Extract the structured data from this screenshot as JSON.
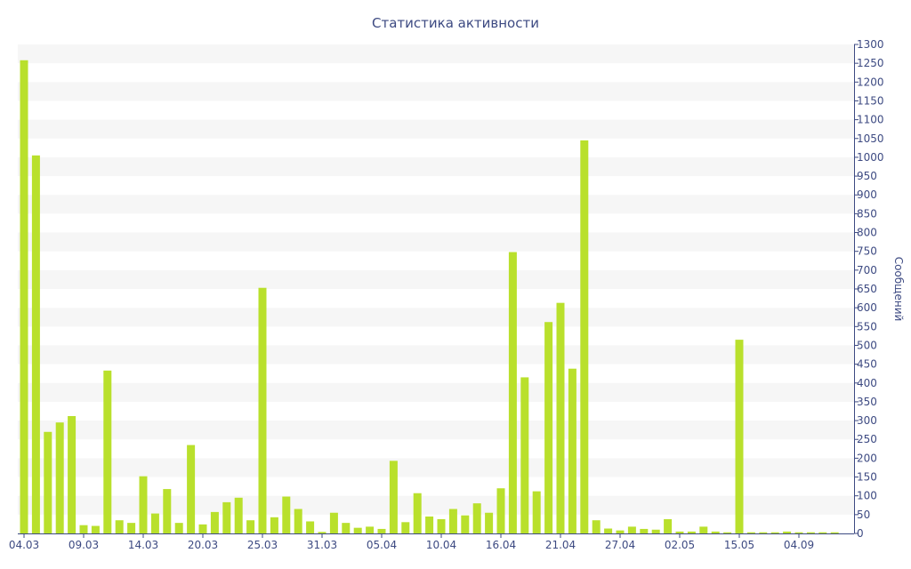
{
  "chart_data": {
    "type": "bar",
    "title": "Статистика активности",
    "ylabel": "Сообщений",
    "xlabel": "",
    "ylim": [
      0,
      1300
    ],
    "y_ticks": [
      0,
      50,
      100,
      150,
      200,
      250,
      300,
      350,
      400,
      450,
      500,
      550,
      600,
      650,
      700,
      750,
      800,
      850,
      900,
      950,
      1000,
      1050,
      1100,
      1150,
      1200,
      1250,
      1300
    ],
    "x_tick_labels": [
      "04.03",
      "09.03",
      "14.03",
      "20.03",
      "25.03",
      "31.03",
      "05.04",
      "10.04",
      "16.04",
      "21.04",
      "27.04",
      "02.05",
      "15.05",
      "04.09"
    ],
    "x_tick_bar_index": [
      0,
      5,
      10,
      15,
      20,
      25,
      30,
      35,
      40,
      45,
      50,
      55,
      60,
      65
    ],
    "grid": true,
    "bar_color": "#b9e02c",
    "values": [
      1258,
      1005,
      270,
      295,
      312,
      22,
      20,
      433,
      35,
      28,
      152,
      53,
      118,
      28,
      235,
      24,
      57,
      83,
      95,
      35,
      653,
      43,
      98,
      65,
      32,
      4,
      55,
      28,
      15,
      18,
      12,
      193,
      30,
      107,
      45,
      38,
      65,
      48,
      80,
      55,
      120,
      748,
      415,
      112,
      562,
      613,
      438,
      1045,
      35,
      13,
      8,
      18,
      12,
      10,
      38,
      5,
      5,
      18,
      5,
      3,
      515,
      3,
      3,
      3,
      5,
      3,
      3,
      3,
      3
    ]
  }
}
